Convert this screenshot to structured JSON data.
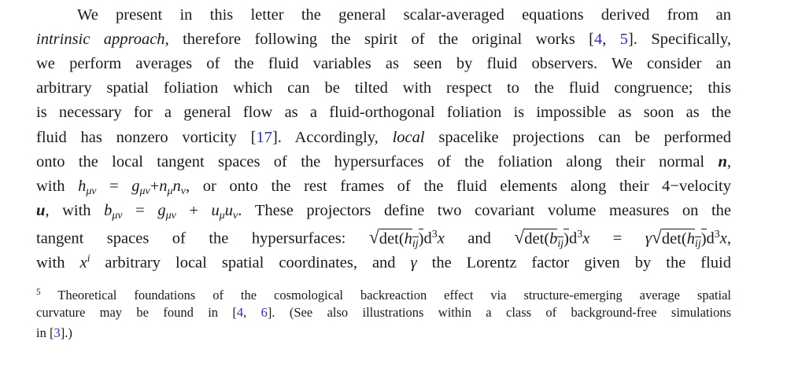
{
  "paragraph": {
    "lines": [
      [
        {
          "t": "We present in this letter the general scalar-averaged equations derived from an"
        }
      ],
      [
        {
          "t": "intrinsic approach",
          "s": "i"
        },
        {
          "t": ", therefore following the spirit of the original works ["
        },
        {
          "t": "4",
          "s": "c"
        },
        {
          "t": ", "
        },
        {
          "t": "5",
          "s": "c"
        },
        {
          "t": "]. Specifically,"
        }
      ],
      [
        {
          "t": "we perform averages of the fluid variables as seen by fluid observers.  We consider an"
        }
      ],
      [
        {
          "t": "arbitrary spatial foliation which can be tilted with respect to the fluid congruence; this"
        }
      ],
      [
        {
          "t": "is necessary for a general flow as a fluid-orthogonal foliation is impossible as soon as the"
        }
      ],
      [
        {
          "t": "fluid has nonzero vorticity ["
        },
        {
          "t": "17",
          "s": "c"
        },
        {
          "t": "]. Accordingly, "
        },
        {
          "t": "local",
          "s": "i"
        },
        {
          "t": " spacelike projections can be performed"
        }
      ],
      [
        {
          "t": "onto the local tangent spaces of the hypersurfaces of the foliation along their normal "
        },
        {
          "t": "n",
          "s": "b"
        },
        {
          "t": ","
        }
      ],
      [
        {
          "t": "with "
        },
        {
          "t": "h",
          "s": "m"
        },
        {
          "t": "μν",
          "s": "sub"
        },
        {
          "t": " = "
        },
        {
          "t": "g",
          "s": "m"
        },
        {
          "t": "μν",
          "s": "sub"
        },
        {
          "t": "+"
        },
        {
          "t": "n",
          "s": "m"
        },
        {
          "t": "μ",
          "s": "sub"
        },
        {
          "t": "n",
          "s": "m"
        },
        {
          "t": "ν",
          "s": "sub"
        },
        {
          "t": ", or onto the rest frames of the fluid elements along their 4−velocity"
        }
      ],
      [
        {
          "t": "u",
          "s": "b"
        },
        {
          "t": ", with "
        },
        {
          "t": "b",
          "s": "m"
        },
        {
          "t": "μν",
          "s": "sub"
        },
        {
          "t": " = "
        },
        {
          "t": "g",
          "s": "m"
        },
        {
          "t": "μν",
          "s": "sub"
        },
        {
          "t": " + "
        },
        {
          "t": "u",
          "s": "m"
        },
        {
          "t": "μ",
          "s": "sub"
        },
        {
          "t": "u",
          "s": "m"
        },
        {
          "t": "ν",
          "s": "sub"
        },
        {
          "t": ". These projectors define two covariant volume measures on the"
        }
      ],
      [
        {
          "t": "tangent spaces of the hypersurfaces: "
        },
        {
          "t": "√",
          "s": "sq"
        },
        {
          "t": "det(",
          "s": "o"
        },
        {
          "t": "h",
          "s": "o m"
        },
        {
          "t": "ij",
          "s": "o sub"
        },
        {
          "t": ")",
          "s": "o"
        },
        {
          "t": "d"
        },
        {
          "t": "3",
          "s": "sup"
        },
        {
          "t": "x",
          "s": "m"
        },
        {
          "t": " and "
        },
        {
          "t": "√",
          "s": "sq"
        },
        {
          "t": "det(",
          "s": "o"
        },
        {
          "t": "b",
          "s": "o m"
        },
        {
          "t": "ij",
          "s": "o sub"
        },
        {
          "t": ")",
          "s": "o"
        },
        {
          "t": "d"
        },
        {
          "t": "3",
          "s": "sup"
        },
        {
          "t": "x",
          "s": "m"
        },
        {
          "t": " = "
        },
        {
          "t": "γ",
          "s": "m"
        },
        {
          "t": "√",
          "s": "sq"
        },
        {
          "t": "det(",
          "s": "o"
        },
        {
          "t": "h",
          "s": "o m"
        },
        {
          "t": "ij",
          "s": "o sub"
        },
        {
          "t": ")",
          "s": "o"
        },
        {
          "t": "d"
        },
        {
          "t": "3",
          "s": "sup"
        },
        {
          "t": "x",
          "s": "m"
        },
        {
          "t": ","
        }
      ],
      [
        {
          "t": "with "
        },
        {
          "t": "x",
          "s": "m"
        },
        {
          "t": "i",
          "s": "sup m"
        },
        {
          "t": " arbitrary local spatial coordinates, and "
        },
        {
          "t": "γ",
          "s": "m"
        },
        {
          "t": " the Lorentz factor given by the fluid"
        }
      ]
    ]
  },
  "footnote": {
    "lines": [
      [
        {
          "t": "5",
          "s": "sup"
        },
        {
          "t": "  Theoretical foundations of the cosmological backreaction effect via structure-emerging average spatial"
        }
      ],
      [
        {
          "t": "curvature may be found in ["
        },
        {
          "t": "4",
          "s": "c"
        },
        {
          "t": ", "
        },
        {
          "t": "6",
          "s": "c"
        },
        {
          "t": "]. (See also illustrations within a class of background-free simulations"
        }
      ],
      [
        {
          "t": "in ["
        },
        {
          "t": "3",
          "s": "c"
        },
        {
          "t": "].)"
        }
      ]
    ]
  },
  "colors": {
    "text": "#1a1a1a",
    "citation": "#2b2bd8"
  }
}
